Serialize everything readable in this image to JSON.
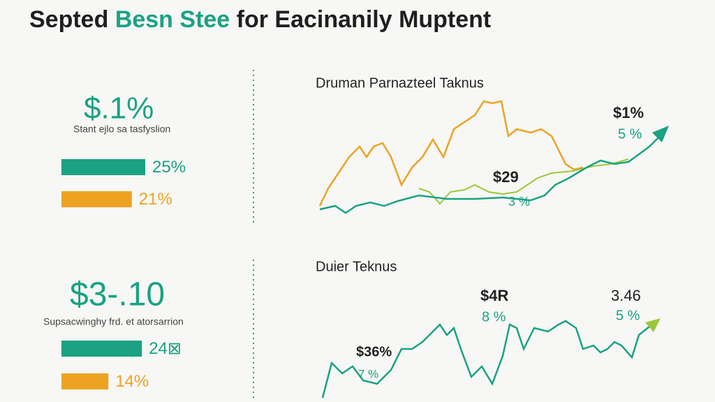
{
  "header": {
    "title_parts": [
      "Septed ",
      "Besn Stee",
      " for Eacinanily Muptent"
    ]
  },
  "panels": [
    {
      "headline": "$.1%",
      "caption": "Stant ejlo sa tasfyslion",
      "bars": {
        "values": [
          25,
          21
        ],
        "value_labels": [
          "25%",
          "21%"
        ],
        "colors": [
          "#1aa283",
          "#eda321"
        ]
      }
    },
    {
      "headline": "$3-.10",
      "caption": "Supsacwinghy frd. et atorsarrion",
      "bars": {
        "values": [
          24,
          14
        ],
        "value_labels": [
          "24⊠",
          "14%"
        ],
        "colors": [
          "#1aa283",
          "#eda321"
        ]
      }
    }
  ],
  "charts": [
    {
      "title": "Druman Parnazteel Taknus",
      "annotations": [
        "$1%",
        "5 %",
        "$29",
        "3 %"
      ]
    },
    {
      "title": "Duier Teknus",
      "annotations": [
        "$4R",
        "8 %",
        "3.46",
        "5 %",
        "$36%",
        "7 %"
      ]
    }
  ]
}
